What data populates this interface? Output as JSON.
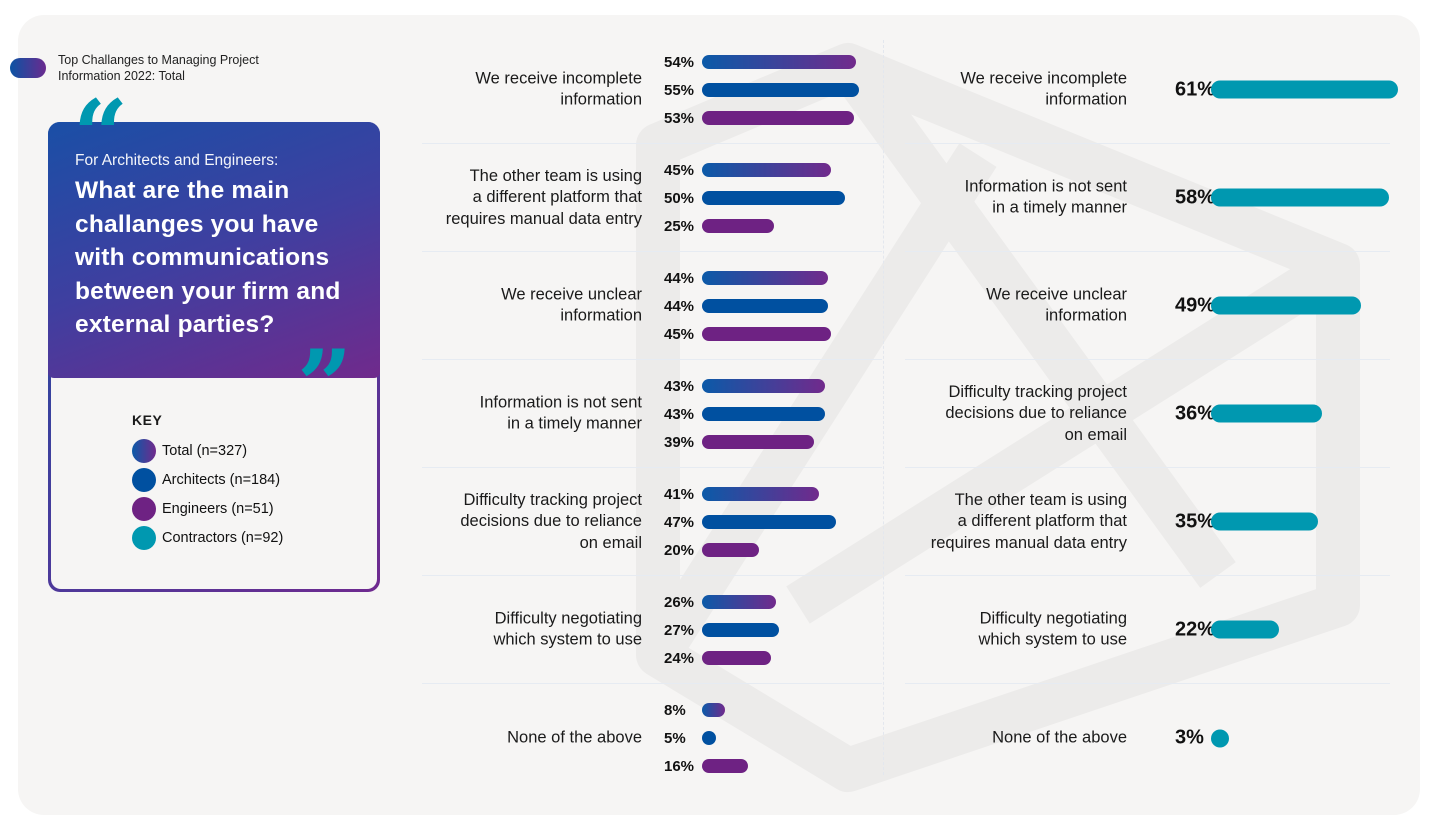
{
  "subtitle": "Top Challanges to Managing Project Information 2022: Total",
  "question": {
    "lead": "For Architects and Engineers:",
    "main": "What are the main challanges you have with communications between your firm and external parties?"
  },
  "key": {
    "title": "KEY",
    "items": [
      {
        "id": "total",
        "label": "Total (n=327)"
      },
      {
        "id": "architects",
        "label": "Architects (n=184)"
      },
      {
        "id": "engineers",
        "label": "Engineers (n=51)"
      },
      {
        "id": "contractors",
        "label": "Contractors (n=92)"
      }
    ]
  },
  "colors": {
    "total_start": "#0b5aa8",
    "total_end": "#712a8c",
    "architects": "#0050a0",
    "engineers": "#6e2283",
    "contractors": "#0098b0",
    "card_bg": "#f6f5f4"
  },
  "chart_data": [
    {
      "type": "bar",
      "orientation": "horizontal",
      "title": "Architects and Engineers",
      "categories": [
        "We receive incomplete information",
        "The other team is using a different platform that requires manual data entry",
        "We receive unclear information",
        "Information is not sent in a timely manner",
        "Difficulty tracking project decisions due to reliance on email",
        "Difficulty negotiating which system to use",
        "None of the above"
      ],
      "series": [
        {
          "name": "Total (n=327)",
          "values": [
            54,
            45,
            44,
            43,
            41,
            26,
            8
          ]
        },
        {
          "name": "Architects (n=184)",
          "values": [
            55,
            50,
            44,
            43,
            47,
            27,
            5
          ]
        },
        {
          "name": "Engineers (n=51)",
          "values": [
            53,
            25,
            45,
            39,
            20,
            24,
            16
          ]
        }
      ],
      "value_suffix": "%",
      "xlim": [
        0,
        100
      ],
      "grid": false,
      "legend": "left"
    },
    {
      "type": "bar",
      "orientation": "horizontal",
      "title": "Contractors",
      "categories": [
        "We receive incomplete information",
        "Information is not sent in a timely manner",
        "We receive unclear information",
        "Difficulty tracking project decisions due to reliance on email",
        "The other team is using a different platform that requires manual data entry",
        "Difficulty negotiating which system to use",
        "None of the above"
      ],
      "series": [
        {
          "name": "Contractors (n=92)",
          "values": [
            61,
            58,
            49,
            36,
            35,
            22,
            3
          ]
        }
      ],
      "value_suffix": "%",
      "xlim": [
        0,
        100
      ],
      "grid": false,
      "legend": "left"
    }
  ],
  "left_labels": [
    [
      "We receive incomplete",
      "information"
    ],
    [
      "The other team is using",
      "a different platform that",
      "requires manual data entry"
    ],
    [
      "We receive unclear",
      "information"
    ],
    [
      "Information is not sent",
      "in a timely manner"
    ],
    [
      "Difficulty tracking project",
      "decisions due to reliance",
      "on email"
    ],
    [
      "Difficulty negotiating",
      "which system to use"
    ],
    [
      "None of the above"
    ]
  ],
  "right_labels": [
    [
      "We receive incomplete",
      "information"
    ],
    [
      "Information is not sent",
      "in a timely manner"
    ],
    [
      "We receive unclear",
      "information"
    ],
    [
      "Difficulty tracking project",
      "decisions due to reliance",
      "on email"
    ],
    [
      "The other team is using",
      "a different platform that",
      "requires manual data entry"
    ],
    [
      "Difficulty negotiating",
      "which system to use"
    ],
    [
      "None of the above"
    ]
  ]
}
